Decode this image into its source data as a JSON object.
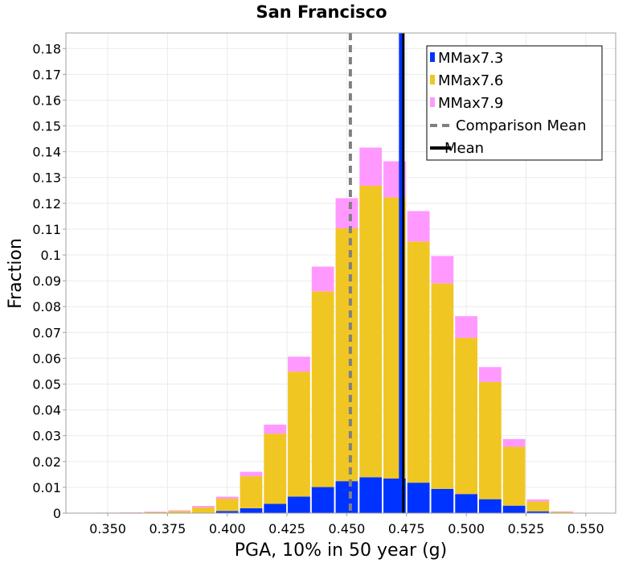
{
  "chart_data": {
    "type": "bar",
    "stacked": true,
    "title": "San Francisco",
    "xlabel": "PGA, 10% in 50 year (g)",
    "ylabel": "Fraction",
    "xlim": [
      0.3325,
      0.5625
    ],
    "ylim": [
      0,
      0.186
    ],
    "bin_width": 0.01,
    "x_ticks": [
      "0.350",
      "0.375",
      "0.400",
      "0.425",
      "0.450",
      "0.475",
      "0.500",
      "0.525",
      "0.550"
    ],
    "y_ticks": [
      "0",
      "0.01",
      "0.02",
      "0.03",
      "0.04",
      "0.05",
      "0.06",
      "0.07",
      "0.08",
      "0.09",
      "0.1",
      "0.11",
      "0.12",
      "0.13",
      "0.14",
      "0.15",
      "0.16",
      "0.17",
      "0.18"
    ],
    "grid": true,
    "legend_position": "top-right",
    "x": [
      0.34,
      0.35,
      0.36,
      0.37,
      0.38,
      0.39,
      0.4,
      0.41,
      0.42,
      0.43,
      0.44,
      0.45,
      0.46,
      0.47,
      0.48,
      0.49,
      0.5,
      0.51,
      0.52,
      0.53,
      0.54,
      0.55
    ],
    "series": [
      {
        "name": "MMax7.3",
        "color": "#0033ff",
        "values": [
          0,
          0,
          0,
          0,
          0,
          0.0001,
          0.0008,
          0.0019,
          0.0036,
          0.0064,
          0.0101,
          0.0124,
          0.0139,
          0.0134,
          0.0118,
          0.0094,
          0.0074,
          0.0054,
          0.0029,
          0.0007,
          0.0001,
          0
        ]
      },
      {
        "name": "MMax7.6",
        "color": "#f0c623",
        "values": [
          0,
          0.0001,
          0.0002,
          0.0004,
          0.0008,
          0.0021,
          0.0048,
          0.0124,
          0.0272,
          0.0484,
          0.0758,
          0.0979,
          0.1129,
          0.1089,
          0.0934,
          0.0796,
          0.0605,
          0.0454,
          0.0228,
          0.0038,
          0.0004,
          0
        ]
      },
      {
        "name": "MMax7.9",
        "color": "#ff99ff",
        "values": [
          0,
          0.0001,
          0.0001,
          0.0002,
          0.0003,
          0.0006,
          0.0008,
          0.0017,
          0.0035,
          0.0058,
          0.0096,
          0.0117,
          0.0148,
          0.014,
          0.0118,
          0.0106,
          0.0084,
          0.0058,
          0.003,
          0.0008,
          0.0002,
          0
        ]
      }
    ],
    "reference_lines": [
      {
        "name": "Comparison Mean",
        "x": 0.4515,
        "color": "#808080",
        "style": "dashed"
      },
      {
        "name": "Mean",
        "x": 0.4735,
        "color": "#000000",
        "style": "solid"
      },
      {
        "name": "MMax7.3 mean",
        "x": 0.4725,
        "color": "#0033ff",
        "style": "solid",
        "in_legend": false
      }
    ],
    "legend": [
      "MMax7.3",
      "MMax7.6",
      "MMax7.9",
      "Comparison Mean",
      "Mean"
    ]
  }
}
